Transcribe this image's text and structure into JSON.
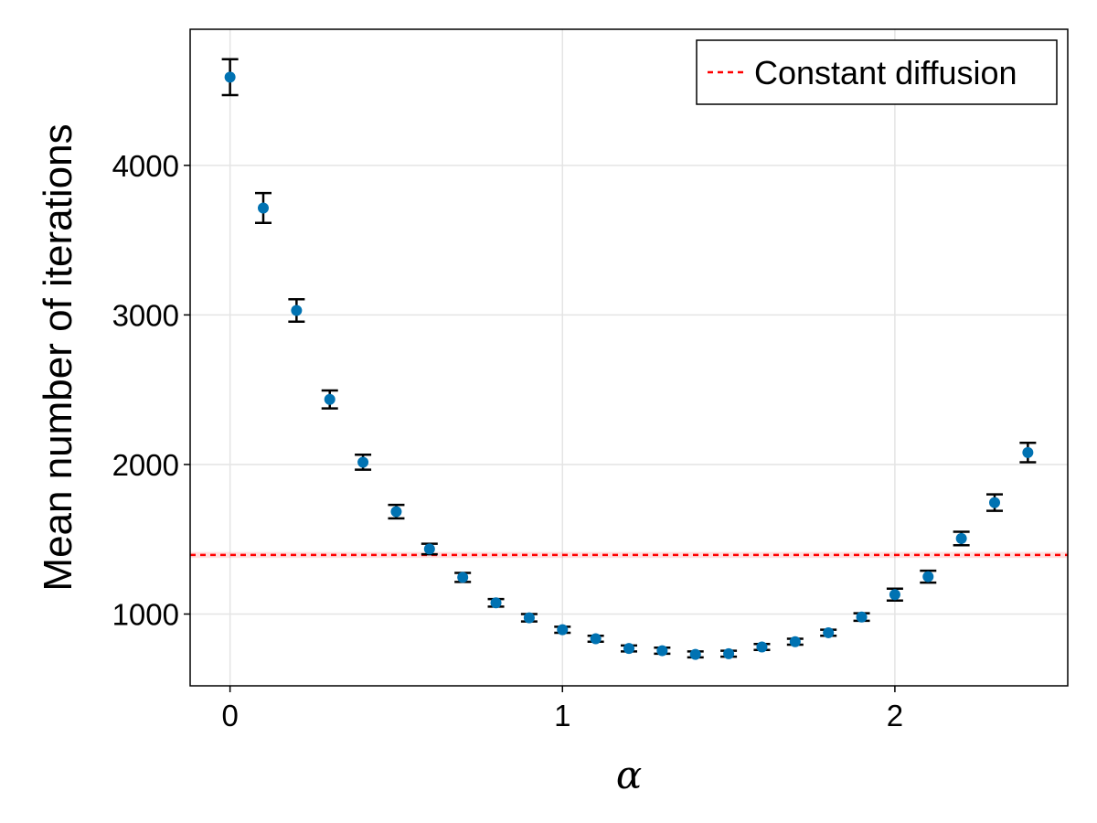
{
  "chart_data": {
    "type": "scatter",
    "title": "",
    "xlabel": "α",
    "ylabel": "Mean number of iterations",
    "xlim": [
      -0.12,
      2.52
    ],
    "ylim": [
      520,
      4910
    ],
    "xticks": [
      0,
      1,
      2
    ],
    "yticks": [
      1000,
      2000,
      3000,
      4000
    ],
    "grid": true,
    "legend_position": "top-right",
    "series": [
      {
        "kind": "errorbar-scatter",
        "color": "#0072b2",
        "x": [
          0,
          0.1,
          0.2,
          0.3,
          0.4,
          0.5,
          0.6,
          0.7,
          0.8,
          0.9,
          1.0,
          1.1,
          1.2,
          1.3,
          1.4,
          1.5,
          1.6,
          1.7,
          1.8,
          1.9,
          2.0,
          2.1,
          2.2,
          2.3,
          2.4
        ],
        "y": [
          4590,
          3715,
          3030,
          2435,
          2015,
          1685,
          1435,
          1245,
          1075,
          975,
          895,
          835,
          770,
          755,
          730,
          735,
          780,
          815,
          875,
          980,
          1130,
          1250,
          1505,
          1745,
          2080
        ],
        "err": [
          120,
          100,
          75,
          60,
          50,
          45,
          35,
          30,
          25,
          25,
          20,
          20,
          20,
          20,
          20,
          20,
          20,
          20,
          20,
          25,
          40,
          40,
          45,
          55,
          65
        ]
      },
      {
        "name": "Constant diffusion",
        "kind": "hline",
        "color": "#ff0000",
        "y": 1395,
        "band": [
          1375,
          1415
        ]
      }
    ]
  }
}
